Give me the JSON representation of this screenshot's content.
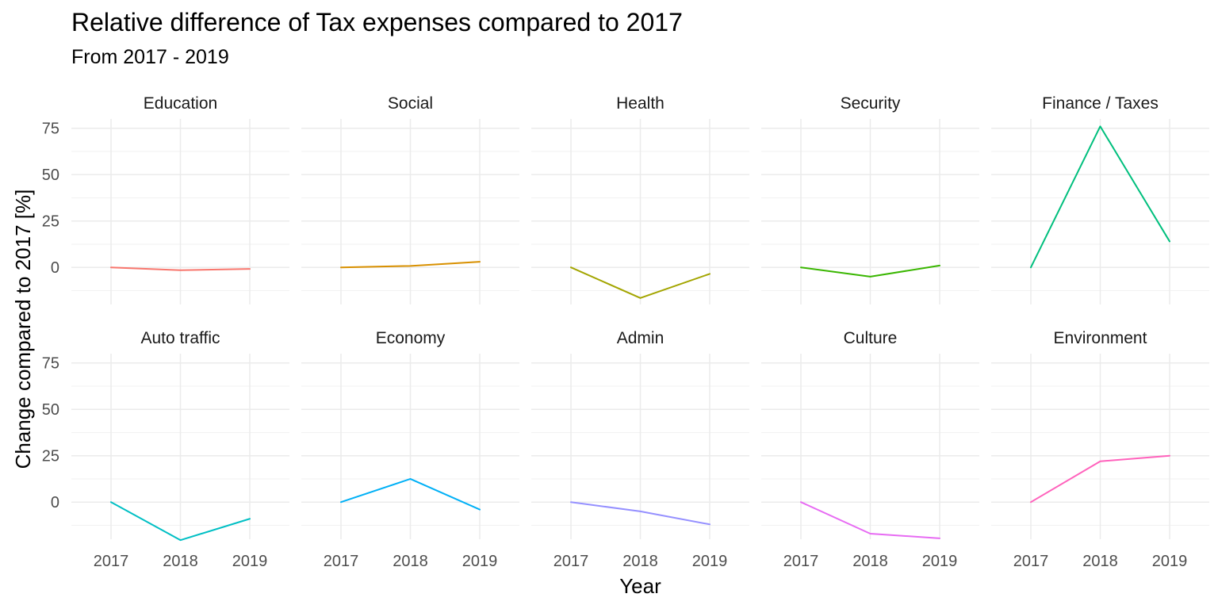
{
  "chart_data": {
    "type": "line",
    "title": "Relative difference of Tax expenses compared to 2017",
    "subtitle": "From 2017 - 2019",
    "xlabel": "Year",
    "ylabel": "Change compared to 2017 [%]",
    "x": [
      "2017",
      "2018",
      "2019"
    ],
    "yticks": [
      0,
      25,
      50,
      75
    ],
    "ylim": [
      -20,
      80
    ],
    "grid": true,
    "legend": "none",
    "facets": [
      {
        "name": "Education",
        "color": "#F8766D",
        "values": [
          0,
          -1.5,
          -0.8
        ]
      },
      {
        "name": "Social",
        "color": "#D89000",
        "values": [
          0,
          0.8,
          3
        ]
      },
      {
        "name": "Health",
        "color": "#A3A500",
        "values": [
          0,
          -16.5,
          -3.5
        ]
      },
      {
        "name": "Security",
        "color": "#39B600",
        "values": [
          0,
          -5,
          1
        ]
      },
      {
        "name": "Finance / Taxes",
        "color": "#00BF7D",
        "values": [
          0,
          76,
          14
        ]
      },
      {
        "name": "Auto traffic",
        "color": "#00BFC4",
        "values": [
          0,
          -20.5,
          -9
        ]
      },
      {
        "name": "Economy",
        "color": "#00B0F6",
        "values": [
          0,
          12.5,
          -4
        ]
      },
      {
        "name": "Admin",
        "color": "#9590FF",
        "values": [
          0,
          -5,
          -12
        ]
      },
      {
        "name": "Culture",
        "color": "#E76BF3",
        "values": [
          0,
          -17,
          -19.5
        ]
      },
      {
        "name": "Environment",
        "color": "#FF62BC",
        "values": [
          0,
          22,
          25
        ]
      }
    ]
  }
}
